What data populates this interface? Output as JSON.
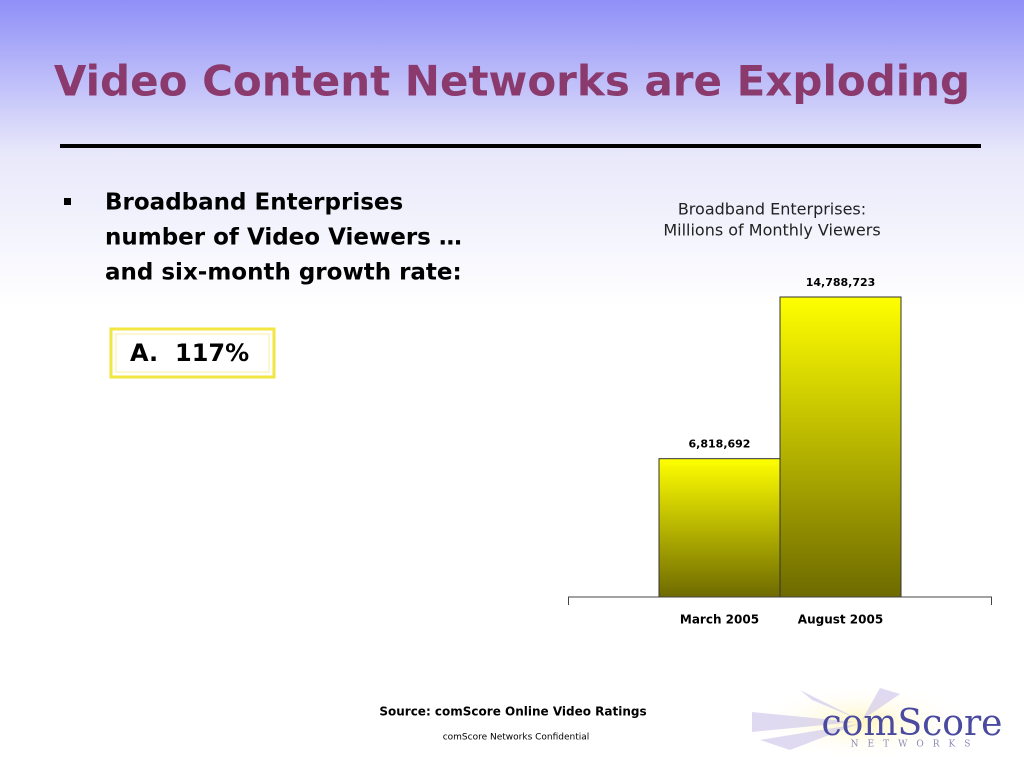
{
  "slide": {
    "title": "Video Content Networks are Exploding",
    "bullet_lines": [
      "Broadband Enterprises",
      "number of Video Viewers …",
      "and six-month growth rate:"
    ],
    "answer": {
      "letter": "A.",
      "text": "117%"
    },
    "source": "Source: comScore Online Video Ratings",
    "confidential": "comScore Networks Confidential",
    "logo": {
      "name": "comScore",
      "tagline": "NETWORKS"
    }
  },
  "chart_data": {
    "type": "bar",
    "title": "Broadband Enterprises:",
    "subtitle": "Millions of Monthly Viewers",
    "categories": [
      "March 2005",
      "August 2005"
    ],
    "values": [
      6818692,
      14788723
    ],
    "value_labels": [
      "6,818,692",
      "14,788,723"
    ],
    "color": "#ffff00"
  }
}
